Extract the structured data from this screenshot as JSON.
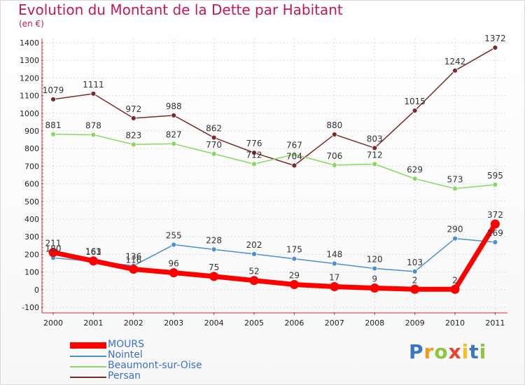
{
  "header": {
    "title": "Evolution du Montant de la Dette par Habitant",
    "subtitle": "(en €)"
  },
  "chart_data": {
    "type": "line",
    "title": "Evolution du Montant de la Dette par Habitant",
    "subtitle": "(en €)",
    "xlabel": "",
    "ylabel": "",
    "ylim": [
      -100,
      1400
    ],
    "yticks": [
      -100,
      0,
      100,
      200,
      300,
      400,
      500,
      600,
      700,
      800,
      900,
      1000,
      1100,
      1200,
      1300,
      1400
    ],
    "grid": true,
    "legend_position": "bottom-left",
    "categories": [
      "2000",
      "2001",
      "2002",
      "2003",
      "2004",
      "2005",
      "2006",
      "2007",
      "2008",
      "2009",
      "2010",
      "2011"
    ],
    "series": [
      {
        "name": "MOURS",
        "color": "#ff0000",
        "values": [
          211,
          163,
          116,
          96,
          75,
          52,
          29,
          17,
          9,
          2,
          2,
          372
        ]
      },
      {
        "name": "Nointel",
        "color": "#4a8fd4",
        "values": [
          180,
          161,
          136,
          255,
          228,
          202,
          175,
          148,
          120,
          103,
          290,
          269
        ]
      },
      {
        "name": "Beaumont-sur-Oise",
        "color": "#88d860",
        "values": [
          881,
          878,
          823,
          827,
          770,
          712,
          767,
          706,
          712,
          629,
          573,
          595
        ]
      },
      {
        "name": "Persan",
        "color": "#7a2a2a",
        "values": [
          1079,
          1111,
          972,
          988,
          862,
          776,
          704,
          880,
          803,
          1015,
          1242,
          1372
        ]
      }
    ]
  },
  "logo": {
    "letters": [
      "P",
      "r",
      "o",
      "x",
      "i",
      "t",
      "i"
    ],
    "colors": [
      "#3b78c4",
      "#f29a1a",
      "#8cc63f",
      "#e8462a",
      "#f2c21a",
      "#3b78c4",
      "#8cc63f"
    ]
  }
}
